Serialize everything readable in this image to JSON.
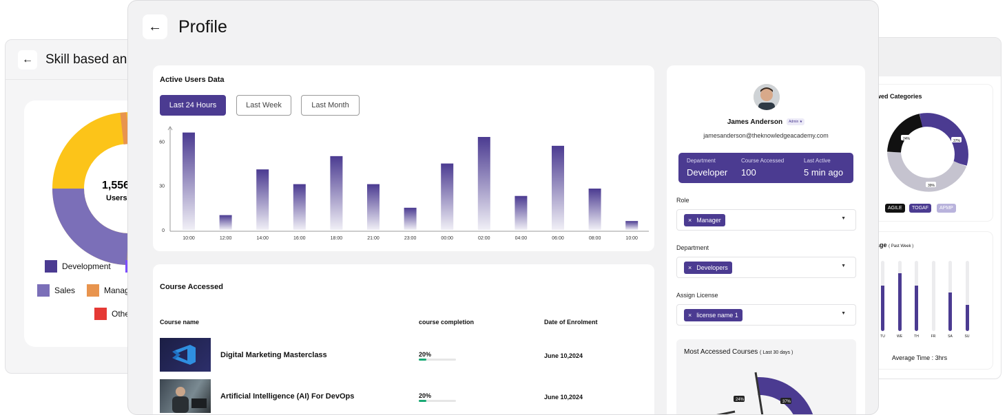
{
  "left_window": {
    "title": "Skill based an",
    "center_value": "1,556",
    "center_label": "Users",
    "legend": [
      {
        "label": "Development",
        "color": "#4b3b91"
      },
      {
        "label": "Sales",
        "color": "#7b6fb8"
      },
      {
        "label": "Manag",
        "color": "#e8944e"
      },
      {
        "label": "Othe",
        "color": "#e53935"
      }
    ],
    "donut_colors": {
      "yellow": "#fcc419",
      "purple": "#7b6fb8",
      "orange": "#e8944e",
      "red": "#e53935",
      "dark": "#4b3b91"
    }
  },
  "right_window": {
    "categories_title": "wed Categories",
    "donut_labels": [
      "24%",
      "37%",
      "39%"
    ],
    "chips": [
      {
        "label": "AGILE",
        "color": "#111111"
      },
      {
        "label": "TOGAF",
        "color": "#4b3b91"
      },
      {
        "label": "APMP",
        "color": "#b9b3dc"
      }
    ],
    "usage_title": "age",
    "usage_sub": "( Past Week )",
    "days": [
      "TU",
      "WE",
      "TH",
      "FR",
      "SA",
      "SU"
    ],
    "day_levels": [
      0.65,
      0.82,
      0.65,
      0.0,
      0.55,
      0.37
    ],
    "average_time": "Average Time : 3hrs"
  },
  "header": {
    "back_icon": "←",
    "title": "Profile"
  },
  "active_users": {
    "title": "Active Users Data",
    "tabs": [
      "Last 24 Hours",
      "Last Week",
      "Last Month"
    ],
    "active_tab": 0
  },
  "chart_data": {
    "type": "bar",
    "title": "Active Users Data",
    "categories": [
      "10:00",
      "12:00",
      "14:00",
      "16:00",
      "18:00",
      "21:00",
      "23:00",
      "00:00",
      "02:00",
      "04:00",
      "06:00",
      "08:00",
      "10:00"
    ],
    "values": [
      66,
      10,
      41,
      31,
      50,
      31,
      15,
      45,
      63,
      23,
      57,
      28,
      6
    ],
    "yticks": [
      0,
      30,
      60
    ],
    "ylim": [
      0,
      70
    ],
    "color": "#4b3b91"
  },
  "course_accessed": {
    "title": "Course Accessed",
    "headers": [
      "Course name",
      "course completion",
      "Date of Enrolment"
    ],
    "rows": [
      {
        "name": "Digital Marketing Masterclass",
        "completion": "20%",
        "completion_fraction": 0.2,
        "date": "June 10,2024"
      },
      {
        "name": "Artificial Intelligence (AI) For DevOps",
        "completion": "20%",
        "completion_fraction": 0.2,
        "date": "June 10,2024"
      }
    ]
  },
  "profile": {
    "name": "James Anderson",
    "badge": "Admin ★",
    "email": "jamesanderson@theknowledgeacademy.com",
    "stats": [
      {
        "label": "Department",
        "value": "Developer"
      },
      {
        "label": "Course Accessed",
        "value": "100"
      },
      {
        "label": "Last Active",
        "value": "5 min ago"
      }
    ],
    "fields": [
      {
        "label": "Role",
        "value": "Manager"
      },
      {
        "label": "Department",
        "value": "Developers"
      },
      {
        "label": "Assign License",
        "value": "license name 1"
      }
    ],
    "remove_glyph": "×",
    "caret_glyph": "▼",
    "most_accessed_title": "Most Accessed Courses",
    "most_accessed_sub": "( Last 30 days )",
    "mac_labels": [
      "24%",
      "37%"
    ]
  }
}
